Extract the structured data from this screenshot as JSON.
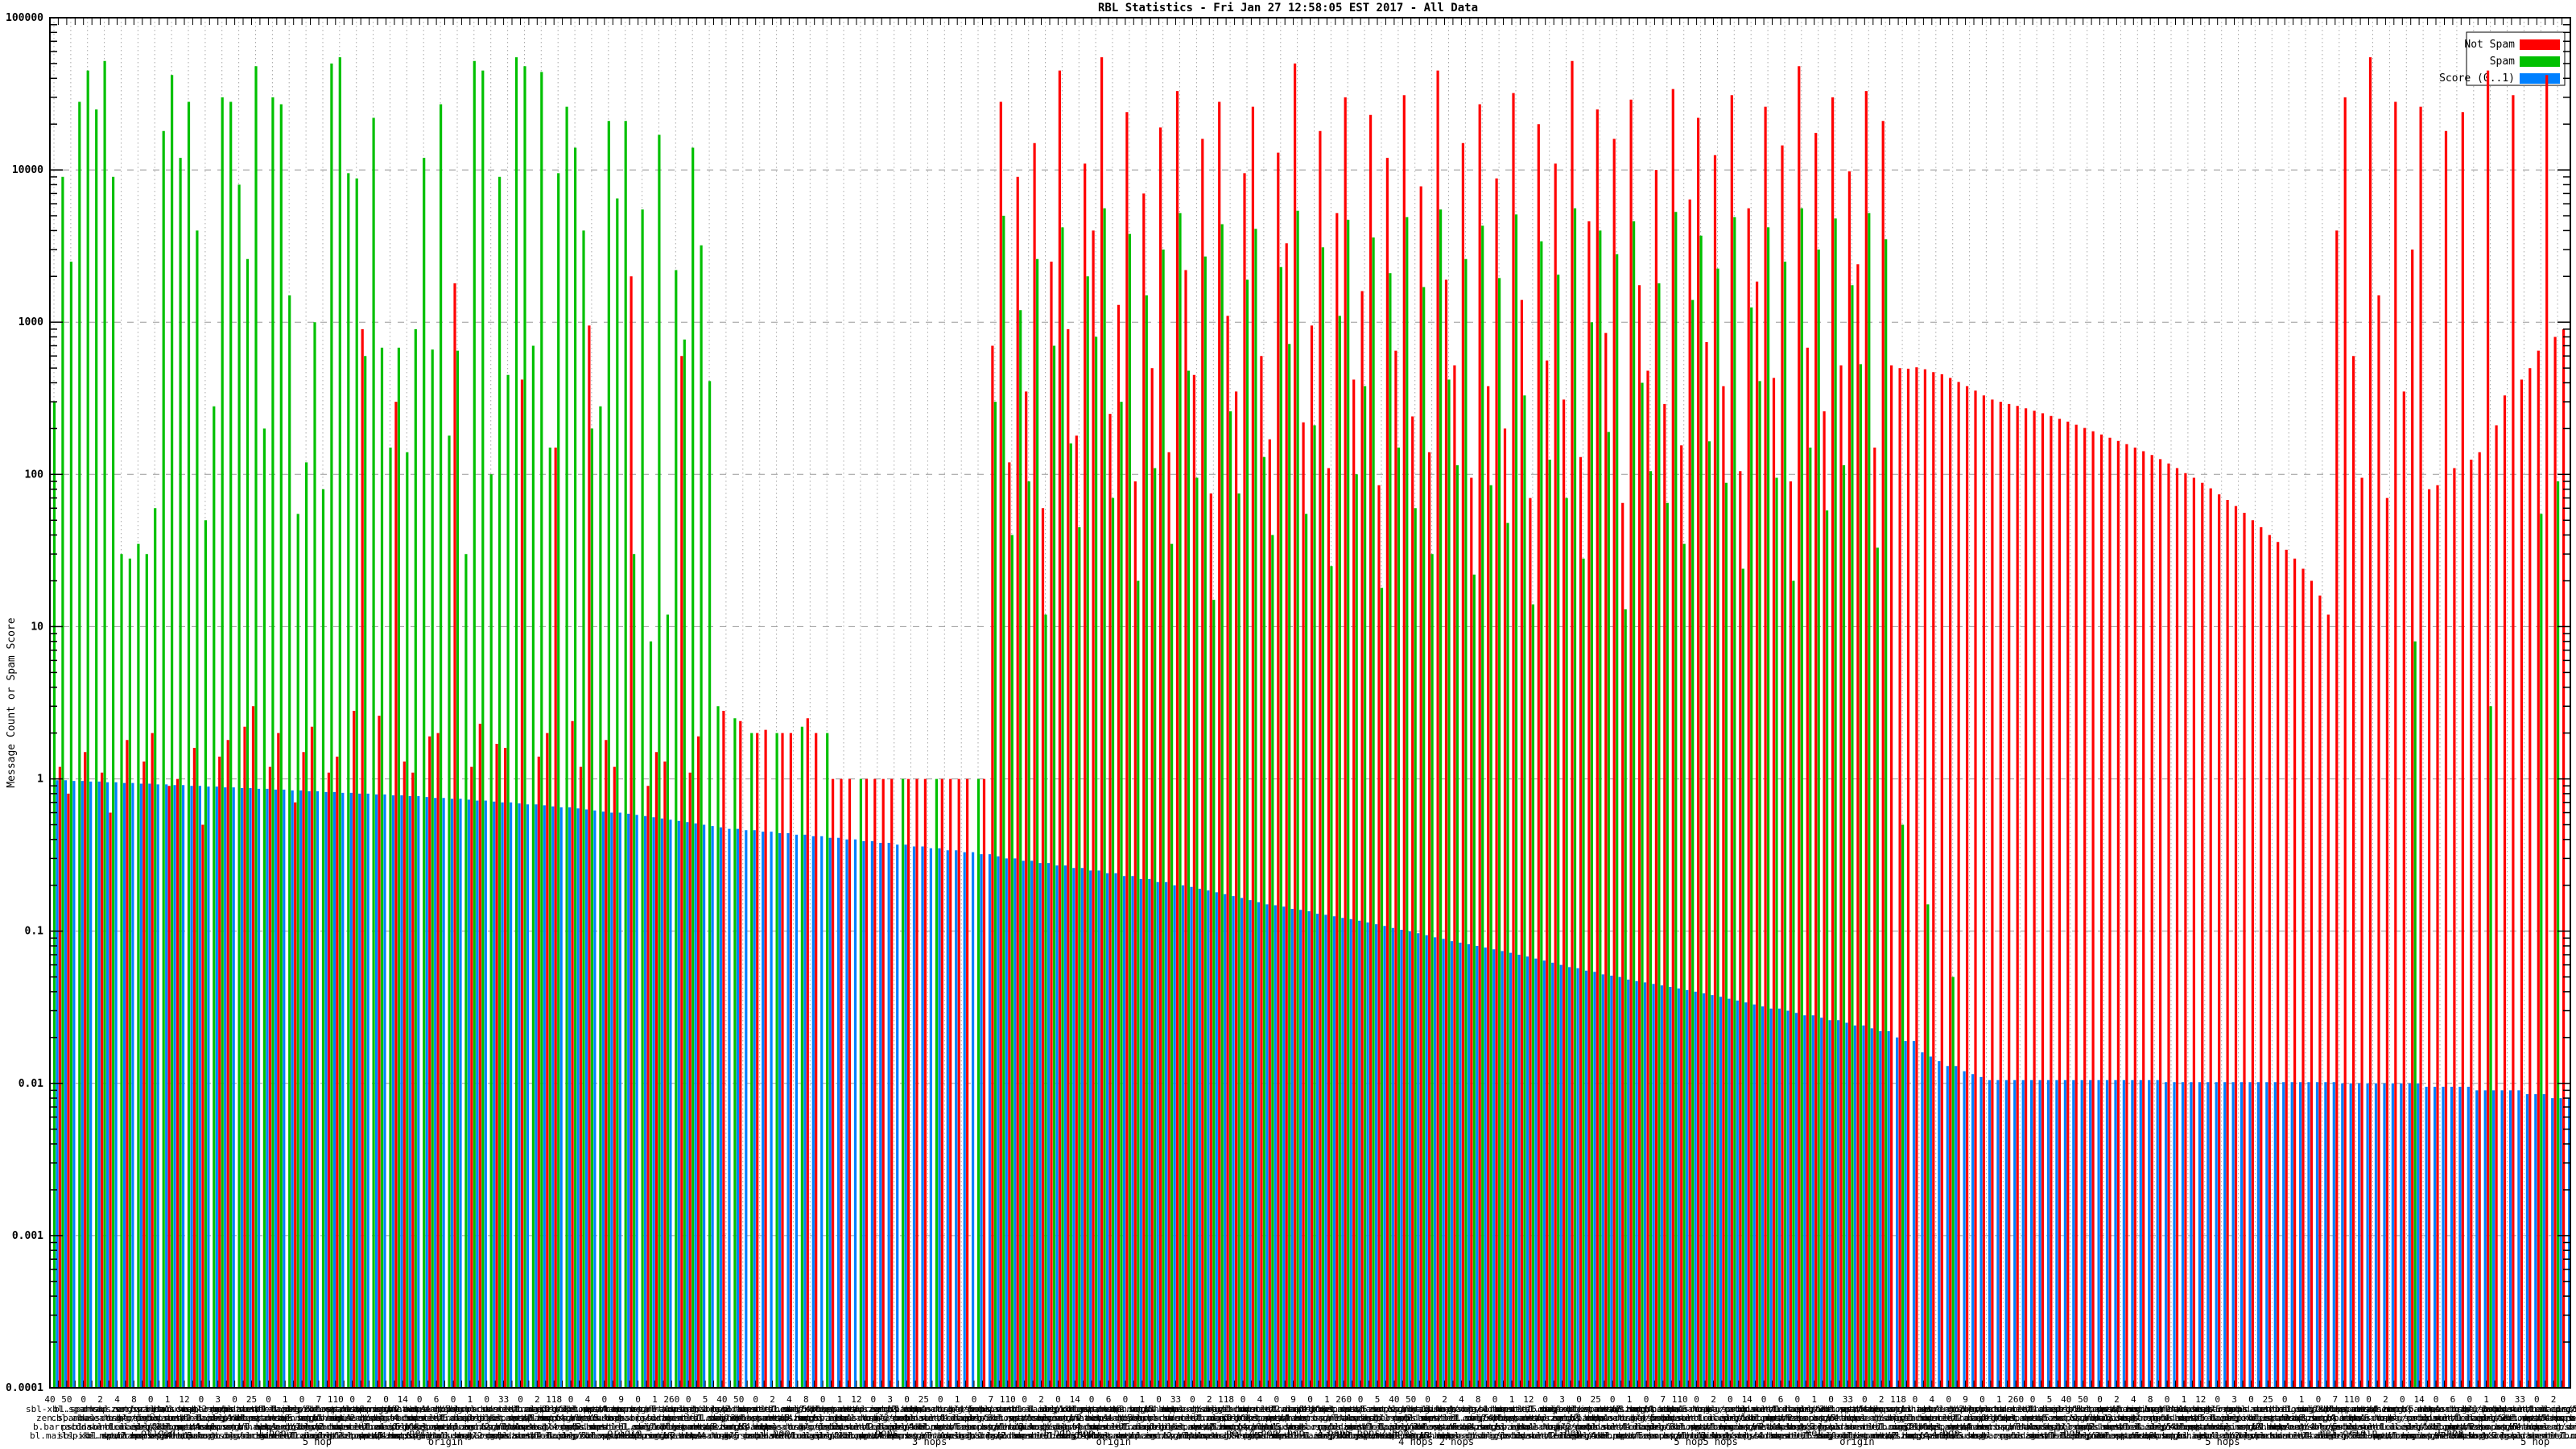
{
  "title": "RBL Statistics - Fri Jan 27 12:58:05 EST 2017 - All Data",
  "chart_data": {
    "type": "bar",
    "subtype": "impulses",
    "title": "RBL Statistics - Fri Jan 27 12:58:05 EST 2017 - All Data",
    "xlabel": "",
    "ylabel": "Message Count or Spam Score",
    "y_axis": {
      "scale": "log",
      "min": 0.0001,
      "max": 100000,
      "tick_labels": [
        "100000",
        "10000",
        "1000",
        "100",
        "10",
        "1",
        "0.1",
        "0.01",
        "0.001",
        "0.0001"
      ]
    },
    "grid": {
      "vertical": "dotted",
      "horizontal_decades": "dashed"
    },
    "legend": {
      "position": "top-right",
      "entries": [
        {
          "label": "Not Spam",
          "color": "#ff0000"
        },
        {
          "label": "Spam",
          "color": "#00c000"
        },
        {
          "label": "Score (0..1)",
          "color": "#0080ff"
        }
      ]
    },
    "colors": {
      "not_spam": "#ff0000",
      "spam": "#00c000",
      "score": "#0080ff",
      "grid_v": "#a8a8a8",
      "grid_h": "#999999",
      "border": "#000000"
    },
    "categories_count": 300,
    "series": [
      {
        "name": "Not Spam",
        "values": [
          0,
          1.2,
          0.8,
          0,
          1.5,
          0,
          1.1,
          0.6,
          0,
          1.8,
          0,
          1.3,
          2,
          0,
          0.9,
          1,
          0,
          1.6,
          0.5,
          0,
          1.4,
          1.8,
          0,
          2.2,
          3,
          0,
          1.2,
          2,
          0,
          0.7,
          1.5,
          2.2,
          0,
          1.1,
          1.4,
          0,
          2.8,
          900,
          0,
          2.6,
          0,
          300,
          1.3,
          1.1,
          0,
          1.9,
          2,
          0,
          1800,
          0,
          1.2,
          2.3,
          0,
          1.7,
          1.6,
          0,
          420,
          0,
          1.4,
          2,
          150,
          0,
          2.4,
          1.2,
          950,
          0,
          1.8,
          1.2,
          0,
          2000,
          0,
          0.9,
          1.5,
          1.3,
          0,
          600,
          1.1,
          1.9,
          0,
          0,
          2.8,
          0,
          2.4,
          0,
          2,
          2.1,
          0,
          2,
          2,
          0,
          2.5,
          2,
          0,
          1,
          1,
          1,
          0,
          1,
          1,
          1,
          1,
          0,
          1,
          1,
          1,
          0,
          1,
          1,
          1,
          1,
          0,
          1,
          700,
          28000,
          120,
          9000,
          350,
          15000,
          60,
          2500,
          45000,
          900,
          180,
          11000,
          4000,
          55000,
          250,
          1300,
          24000,
          90,
          7000,
          500,
          19000,
          140,
          33000,
          2200,
          450,
          16000,
          75,
          28000,
          1100,
          350,
          9500,
          26000,
          600,
          170,
          13000,
          3300,
          50000,
          220,
          950,
          18000,
          110,
          5200,
          30000,
          420,
          1600,
          23000,
          85,
          12000,
          650,
          31000,
          240,
          7800,
          140,
          45000,
          1900,
          520,
          15000,
          95,
          27000,
          380,
          8800,
          200,
          32000,
          1400,
          70,
          20000,
          560,
          11000,
          310,
          52000,
          130,
          4600,
          25000,
          850,
          16000,
          65,
          29000,
          1750,
          480,
          10000,
          290,
          34000,
          155,
          6400,
          22000,
          740,
          12500,
          380,
          31000,
          105,
          5600,
          1850,
          26000,
          430,
          14500,
          90,
          48000,
          680,
          17500,
          260,
          30000,
          520,
          9800,
          2400,
          33000,
          150,
          21000,
          520,
          500,
          495,
          505,
          490,
          470,
          455,
          430,
          405,
          380,
          355,
          330,
          310,
          300,
          290,
          282,
          272,
          262,
          252,
          242,
          232,
          222,
          212,
          202,
          192,
          183,
          174,
          166,
          158,
          150,
          142,
          134,
          126,
          118,
          110,
          102,
          95,
          88,
          81,
          74,
          68,
          62,
          56,
          50,
          45,
          40,
          36,
          32,
          28,
          24,
          20,
          16,
          12,
          4000,
          30000,
          600,
          95,
          55000,
          1500,
          70,
          28000,
          350,
          3000,
          26000,
          80,
          85,
          18000,
          110,
          24000,
          125,
          140,
          45000,
          210,
          330,
          31000,
          420,
          500,
          650,
          42000,
          800,
          900
        ]
      },
      {
        "name": "Spam",
        "values": [
          300,
          9000,
          2500,
          28000,
          45000,
          25000,
          52000,
          9000,
          30,
          28,
          35,
          30,
          60,
          18000,
          42000,
          12000,
          28000,
          4000,
          50,
          280,
          30000,
          28000,
          8000,
          2600,
          48000,
          200,
          30000,
          27000,
          1500,
          55,
          120,
          1000,
          80,
          50000,
          55000,
          9500,
          8800,
          600,
          22000,
          680,
          150,
          680,
          140,
          900,
          12000,
          660,
          27000,
          180,
          650,
          30,
          52000,
          45000,
          100,
          9000,
          450,
          55000,
          48000,
          700,
          44000,
          150,
          9500,
          26000,
          14000,
          4000,
          200,
          280,
          21000,
          6500,
          21000,
          30,
          5500,
          8,
          17000,
          12,
          2200,
          770,
          14000,
          3200,
          410,
          3,
          0,
          2.5,
          0,
          2,
          0,
          0,
          2,
          0,
          0,
          2.2,
          0,
          0,
          2,
          0,
          0,
          0,
          1,
          0,
          0,
          0,
          0,
          1,
          0,
          0,
          0,
          1,
          0,
          0,
          0,
          0,
          1,
          0,
          300,
          5000,
          40,
          1200,
          90,
          2600,
          12,
          700,
          4200,
          160,
          45,
          2000,
          800,
          5600,
          70,
          300,
          3800,
          20,
          1500,
          110,
          3000,
          35,
          5200,
          480,
          95,
          2700,
          15,
          4400,
          260,
          75,
          1900,
          4100,
          130,
          40,
          2300,
          720,
          5400,
          55,
          210,
          3100,
          25,
          1100,
          4700,
          100,
          380,
          3600,
          18,
          2100,
          150,
          4900,
          60,
          1700,
          30,
          5500,
          420,
          115,
          2600,
          22,
          4300,
          85,
          1950,
          48,
          5100,
          330,
          14,
          3400,
          125,
          2050,
          70,
          5600,
          28,
          1000,
          4000,
          190,
          2800,
          13,
          4600,
          400,
          105,
          1800,
          65,
          5300,
          35,
          1400,
          3700,
          165,
          2250,
          88,
          4900,
          24,
          1250,
          410,
          4200,
          95,
          2500,
          20,
          5600,
          150,
          3000,
          58,
          4800,
          115,
          1750,
          530,
          5200,
          33,
          3500,
          0,
          0.5,
          0,
          0,
          0.15,
          0,
          0,
          0.05,
          0,
          0,
          0,
          0,
          0,
          0,
          0,
          0,
          0,
          0,
          0,
          0,
          0,
          0,
          0,
          0,
          0,
          0,
          0,
          0,
          0,
          0,
          0,
          0,
          0,
          0,
          0,
          0,
          0,
          0,
          0,
          0,
          0,
          0,
          0,
          0,
          0,
          0,
          0,
          0,
          0,
          0,
          0,
          0,
          0,
          0,
          0,
          0,
          0,
          0,
          0,
          0,
          0,
          0,
          8,
          0,
          0,
          0,
          0,
          0,
          0,
          0,
          0,
          3,
          0,
          0,
          0,
          0,
          0,
          55,
          0,
          90,
          0
        ]
      },
      {
        "name": "Score (0..1)",
        "values": [
          0.98,
          0.98,
          0.97,
          0.97,
          0.96,
          0.96,
          0.95,
          0.95,
          0.94,
          0.94,
          0.93,
          0.93,
          0.92,
          0.92,
          0.91,
          0.91,
          0.9,
          0.9,
          0.89,
          0.89,
          0.88,
          0.88,
          0.87,
          0.87,
          0.86,
          0.86,
          0.85,
          0.85,
          0.84,
          0.84,
          0.83,
          0.83,
          0.82,
          0.82,
          0.81,
          0.81,
          0.8,
          0.8,
          0.79,
          0.79,
          0.78,
          0.78,
          0.77,
          0.77,
          0.76,
          0.75,
          0.75,
          0.74,
          0.74,
          0.73,
          0.72,
          0.72,
          0.71,
          0.7,
          0.7,
          0.69,
          0.68,
          0.68,
          0.67,
          0.66,
          0.65,
          0.65,
          0.64,
          0.63,
          0.62,
          0.61,
          0.6,
          0.6,
          0.59,
          0.58,
          0.57,
          0.56,
          0.55,
          0.54,
          0.53,
          0.52,
          0.51,
          0.5,
          0.49,
          0.48,
          0.47,
          0.47,
          0.46,
          0.46,
          0.45,
          0.45,
          0.44,
          0.44,
          0.43,
          0.43,
          0.42,
          0.42,
          0.41,
          0.41,
          0.4,
          0.4,
          0.39,
          0.39,
          0.38,
          0.38,
          0.37,
          0.37,
          0.36,
          0.36,
          0.35,
          0.35,
          0.34,
          0.34,
          0.33,
          0.33,
          0.32,
          0.32,
          0.31,
          0.3,
          0.3,
          0.29,
          0.29,
          0.28,
          0.28,
          0.27,
          0.27,
          0.26,
          0.26,
          0.25,
          0.25,
          0.24,
          0.24,
          0.23,
          0.23,
          0.22,
          0.22,
          0.21,
          0.21,
          0.2,
          0.2,
          0.195,
          0.19,
          0.185,
          0.18,
          0.175,
          0.17,
          0.165,
          0.16,
          0.155,
          0.15,
          0.148,
          0.145,
          0.14,
          0.138,
          0.135,
          0.13,
          0.128,
          0.125,
          0.122,
          0.12,
          0.117,
          0.114,
          0.111,
          0.108,
          0.105,
          0.102,
          0.1,
          0.097,
          0.094,
          0.091,
          0.089,
          0.086,
          0.084,
          0.082,
          0.08,
          0.078,
          0.076,
          0.074,
          0.072,
          0.07,
          0.068,
          0.066,
          0.064,
          0.062,
          0.06,
          0.058,
          0.057,
          0.055,
          0.054,
          0.052,
          0.051,
          0.05,
          0.048,
          0.047,
          0.046,
          0.045,
          0.044,
          0.043,
          0.042,
          0.041,
          0.04,
          0.039,
          0.038,
          0.037,
          0.036,
          0.035,
          0.034,
          0.033,
          0.032,
          0.031,
          0.031,
          0.03,
          0.029,
          0.028,
          0.028,
          0.027,
          0.026,
          0.026,
          0.025,
          0.024,
          0.024,
          0.023,
          0.022,
          0.022,
          0.02,
          0.019,
          0.019,
          0.016,
          0.015,
          0.014,
          0.013,
          0.013,
          0.012,
          0.0115,
          0.011,
          0.0105,
          0.0105,
          0.0105,
          0.0105,
          0.0105,
          0.0105,
          0.0105,
          0.0105,
          0.0105,
          0.0105,
          0.0105,
          0.0105,
          0.0105,
          0.0105,
          0.0105,
          0.0105,
          0.0105,
          0.0105,
          0.0105,
          0.0105,
          0.0105,
          0.0102,
          0.0102,
          0.0102,
          0.0102,
          0.0102,
          0.0102,
          0.0102,
          0.0102,
          0.0102,
          0.0102,
          0.0102,
          0.0102,
          0.0102,
          0.0102,
          0.0102,
          0.0102,
          0.0102,
          0.0102,
          0.0102,
          0.0102,
          0.0102,
          0.01,
          0.01,
          0.01,
          0.01,
          0.01,
          0.01,
          0.01,
          0.01,
          0.01,
          0.01,
          0.0095,
          0.0095,
          0.0095,
          0.0095,
          0.0095,
          0.0095,
          0.009,
          0.009,
          0.009,
          0.009,
          0.009,
          0.009,
          0.0085,
          0.0085,
          0.0085,
          0.008,
          0.008,
          0.008
        ]
      }
    ],
    "x_labels": {
      "note": "dense overlapping multi-line rbl labels, mostly illegible",
      "numbers": [
        40,
        50,
        0,
        2,
        4,
        8,
        0,
        1,
        12,
        0,
        3,
        0,
        25,
        0,
        1,
        0,
        7,
        110,
        0,
        2,
        0,
        14,
        0,
        6,
        0,
        1,
        0,
        33,
        0,
        2,
        118,
        0,
        4,
        0,
        9,
        0,
        1,
        260,
        0,
        5
      ],
      "names": [
        "sbl-xbl.spamhaus.org",
        "bl.spamcop.net",
        "dnsbl.sorbs.net",
        "zen.spamhaus.org",
        "cbl.abuseat.org",
        "dul.dnsbl.sorbs.net",
        "b.barracudacentral.org",
        "psbl.surriel.com",
        "dnsbl-1.uceprotect.net",
        "bl.mailspike.net"
      ],
      "suffixes": [
        "",
        "/origin",
        "/1 hop",
        "/2 hops",
        "/net",
        "/4 hops",
        "/5 hops"
      ],
      "tokens": [
        [
          0.043,
          "origin",
          0
        ],
        [
          0.088,
          "1 hop",
          0
        ],
        [
          0.106,
          "5 hop",
          1
        ],
        [
          0.146,
          "net",
          0
        ],
        [
          0.157,
          "origin",
          1
        ],
        [
          0.228,
          "origin",
          0
        ],
        [
          0.288,
          "1 hop",
          0
        ],
        [
          0.332,
          "hops",
          0
        ],
        [
          0.349,
          "3 hops",
          1
        ],
        [
          0.404,
          "1 hdp hop",
          0
        ],
        [
          0.422,
          "origin",
          1
        ],
        [
          0.477,
          "net 4 hop",
          0
        ],
        [
          0.492,
          "2 hop",
          0
        ],
        [
          0.522,
          "2 hop5 hops2 hops",
          0
        ],
        [
          0.55,
          "4 hops 2 hops",
          1
        ],
        [
          0.602,
          "1 hop",
          0
        ],
        [
          0.657,
          "5 hop5 hops",
          1
        ],
        [
          0.7,
          "net",
          0
        ],
        [
          0.717,
          "origin",
          1
        ],
        [
          0.752,
          "2 hop",
          0
        ],
        [
          0.8,
          "1 hop",
          0
        ],
        [
          0.862,
          "5 hops",
          1
        ],
        [
          0.912,
          "net origin",
          0
        ],
        [
          0.952,
          "2 hop",
          0
        ],
        [
          0.986,
          "5 hop",
          1
        ]
      ]
    }
  }
}
